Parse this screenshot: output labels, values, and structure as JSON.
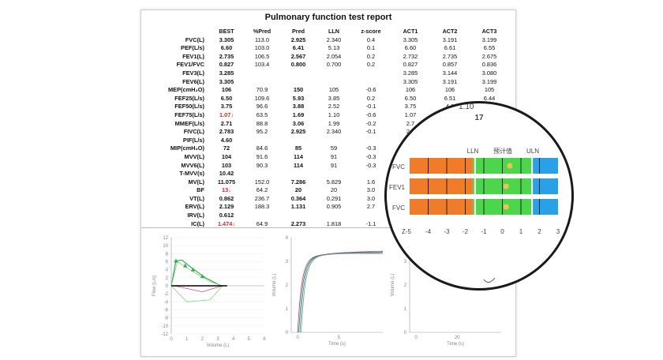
{
  "report": {
    "title": "Pulmonary function test report",
    "headers": [
      "",
      "BEST",
      "%Pred",
      "Pred",
      "LLN",
      "z-score",
      "ACT1",
      "ACT2",
      "ACT3"
    ],
    "rows": [
      {
        "label": "FVC(L)",
        "best": "3.305",
        "pct": "113.0",
        "pred": "2.925",
        "lln": "2.340",
        "z": "0.4",
        "a1": "3.305",
        "a2": "3.191",
        "a3": "3.199"
      },
      {
        "label": "PEF(L/s)",
        "best": "6.60",
        "pct": "103.0",
        "pred": "6.41",
        "lln": "5.13",
        "z": "0.1",
        "a1": "6.60",
        "a2": "6.61",
        "a3": "6.55"
      },
      {
        "label": "FEV1(L)",
        "best": "2.735",
        "pct": "106.5",
        "pred": "2.567",
        "lln": "2.054",
        "z": "0.2",
        "a1": "2.732",
        "a2": "2.735",
        "a3": "2.675"
      },
      {
        "label": "FEV1/FVC",
        "best": "0.827",
        "pct": "103.4",
        "pred": "0.800",
        "lln": "0.700",
        "z": "0.2",
        "a1": "0.827",
        "a2": "0.857",
        "a3": "0.836"
      },
      {
        "label": "FEV3(L)",
        "best": "3.285",
        "pct": "",
        "pred": "",
        "lln": "",
        "z": "",
        "a1": "3.285",
        "a2": "3.144",
        "a3": "3.080"
      },
      {
        "label": "FEV6(L)",
        "best": "3.305",
        "pct": "",
        "pred": "",
        "lln": "",
        "z": "",
        "a1": "3.305",
        "a2": "3.191",
        "a3": "3.199"
      },
      {
        "label": "MEP(cmH₂O)",
        "best": "106",
        "pct": "70.9",
        "pred": "150",
        "lln": "105",
        "z": "-0.6",
        "a1": "106",
        "a2": "106",
        "a3": "105"
      },
      {
        "label": "FEF25(L/s)",
        "best": "6.50",
        "pct": "109.6",
        "pred": "5.93",
        "lln": "3.85",
        "z": "0.2",
        "a1": "6.50",
        "a2": "6.51",
        "a3": "6.44"
      },
      {
        "label": "FEF50(L/s)",
        "best": "3.75",
        "pct": "96.6",
        "pred": "3.88",
        "lln": "2.52",
        "z": "-0.1",
        "a1": "3.75",
        "a2": "4.1",
        "a3": "1.10"
      },
      {
        "label": "FEF75(L/s)",
        "best": "1.07↓",
        "pct": "63.5",
        "pred": "1.69",
        "lln": "1.10",
        "z": "-0.6",
        "a1": "1.07",
        "a2": "",
        "a3": "17"
      },
      {
        "label": "MMEF(L/s)",
        "best": "2.71",
        "pct": "88.8",
        "pred": "3.06",
        "lln": "1.99",
        "z": "-0.2",
        "a1": "2.7",
        "a2": "",
        "a3": ""
      },
      {
        "label": "FIVC(L)",
        "best": "2.783",
        "pct": "95.2",
        "pred": "2.925",
        "lln": "2.340",
        "z": "-0.1",
        "a1": "2.7",
        "a2": "",
        "a3": ""
      },
      {
        "label": "PIF(L/s)",
        "best": "4.60",
        "pct": "",
        "pred": "",
        "lln": "",
        "z": "",
        "a1": "",
        "a2": "",
        "a3": ""
      },
      {
        "label": "MIP(cmH₂O)",
        "best": "72",
        "pct": "84.6",
        "pred": "85",
        "lln": "59",
        "z": "-0.3",
        "a1": "",
        "a2": "",
        "a3": ""
      },
      {
        "label": "MVV(L)",
        "best": "104",
        "pct": "91.6",
        "pred": "114",
        "lln": "91",
        "z": "-0.3",
        "a1": "",
        "a2": "",
        "a3": ""
      },
      {
        "label": "MVV6(L)",
        "best": "103",
        "pct": "90.3",
        "pred": "114",
        "lln": "91",
        "z": "-0.3",
        "a1": "",
        "a2": "",
        "a3": ""
      },
      {
        "label": "T-MVV(s)",
        "best": "10.42",
        "pct": "",
        "pred": "",
        "lln": "",
        "z": "",
        "a1": "",
        "a2": "",
        "a3": ""
      },
      {
        "label": "MV(L)",
        "best": "11.075",
        "pct": "152.0",
        "pred": "7.286",
        "lln": "5.829",
        "z": "1.6",
        "a1": "",
        "a2": "",
        "a3": ""
      },
      {
        "label": "BF",
        "best": "13↓",
        "pct": "64.2",
        "pred": "20",
        "lln": "20",
        "z": "3.0",
        "a1": "",
        "a2": "",
        "a3": ""
      },
      {
        "label": "VT(L)",
        "best": "0.862",
        "pct": "236.7",
        "pred": "0.364",
        "lln": "0.291",
        "z": "3.0",
        "a1": "",
        "a2": "",
        "a3": ""
      },
      {
        "label": "ERV(L)",
        "best": "2.129",
        "pct": "188.3",
        "pred": "1.131",
        "lln": "0.905",
        "z": "2.7",
        "a1": "FEV",
        "a2": "",
        "a3": ""
      },
      {
        "label": "IRV(L)",
        "best": "0.612",
        "pct": "",
        "pred": "",
        "lln": "",
        "z": "",
        "a1": "",
        "a2": "",
        "a3": ""
      },
      {
        "label": "IC(L)",
        "best": "1.474↓",
        "pct": "64.9",
        "pred": "2.273",
        "lln": "1.818",
        "z": "-1.1",
        "a1": "",
        "a2": "",
        "a3": ""
      }
    ],
    "red_rows": [
      "FEF75(L/s)",
      "BF",
      "IC(L)"
    ]
  },
  "charts": {
    "flow_volume": {
      "ylabel": "Flow (L/s)",
      "xlabel": "Volume (L)",
      "yticks": [
        "12",
        "10",
        "8",
        "6",
        "4",
        "2",
        "0",
        "-2",
        "-4",
        "-6",
        "-8",
        "-10",
        "-12"
      ],
      "xticks": [
        "0",
        "1",
        "2",
        "3",
        "4",
        "5",
        "6"
      ]
    },
    "volume_time": {
      "ylabel": "Volume (L)",
      "xlabel": "Time (s)",
      "yticks": [
        "4",
        "3",
        "2",
        "1",
        "0"
      ],
      "xticks": [
        "0",
        "5"
      ]
    },
    "volume_time_2": {
      "ylabel": "Volume (L)",
      "xlabel": "Time (s)",
      "yticks": [
        "4",
        "3",
        "2",
        "1",
        "0"
      ],
      "xticks": [
        "0",
        "20"
      ]
    }
  },
  "magnifier": {
    "values_top": [
      "1.10",
      "17"
    ],
    "header_labels": [
      "LLN",
      "预计值",
      "ULN"
    ],
    "rows": [
      "FVC",
      "FEV1",
      "FVC"
    ],
    "scale": [
      "Z-5",
      "-4",
      "-3",
      "-2",
      "-1",
      "0",
      "1",
      "2",
      "3"
    ],
    "colors": {
      "orange": "#f07c2a",
      "green": "#4cd64c",
      "blue": "#2aa0e6",
      "dot": "#f3c24a"
    }
  }
}
